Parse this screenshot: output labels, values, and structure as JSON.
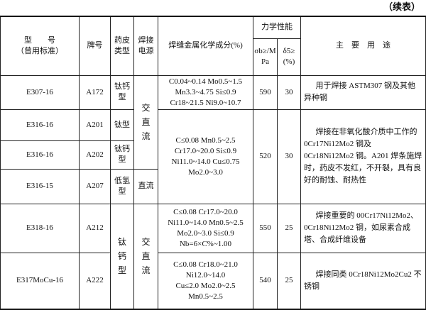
{
  "continued_label": "（续表）",
  "header": {
    "model": "型　　号",
    "model_sub": "（曾用标准）",
    "brand": "牌号",
    "coating": "药皮类型",
    "power": "焊接电源",
    "chem": "焊缝金属化学成分(%)",
    "mech": "力学性能",
    "sigma": "σb≥/MPa",
    "delta": "δ5≥(%)",
    "use": "主　要　用　途"
  },
  "rows": [
    {
      "model": "E307-16",
      "brand": "A172",
      "coating": "钛钙型",
      "power": "交直流",
      "chem": [
        "C0.04~0.14  Mo0.5~1.5",
        "Mn3.3~4.75  Si≤0.9",
        "Cr18~21.5  Ni9.0~10.7"
      ],
      "sigma": "590",
      "delta": "30",
      "use": "用于焊接 ASTM307 钢及其他异种钢"
    },
    {
      "model": "E316-16",
      "brand": "A201",
      "coating": "钛型",
      "chem": [
        "C≤0.08  Mn0.5~2.5",
        "Cr17.0~20.0  Si≤0.9",
        "Ni11.0~14.0  Cu≤0.75",
        "Mo2.0~3.0"
      ],
      "sigma": "520",
      "delta": "30",
      "use": "焊接在非氧化酸介质中工作的0Cr17Ni12Mo2 钢及 0Cr18Ni12Mo2 钢。A201 焊条施焊时，药皮不发红，不开裂，具有良好的耐蚀、耐热性"
    },
    {
      "model": "E316-16",
      "brand": "A202",
      "coating": "钛钙型"
    },
    {
      "model": "E316-15",
      "brand": "A207",
      "coating": "低氢型",
      "power": "直流"
    },
    {
      "model": "E318-16",
      "brand": "A212",
      "coating": "钛钙型",
      "power": "交直流",
      "chem": [
        "C≤0.08  Cr17.0~20.0",
        "Ni11.0~14.0  Mn0.5~2.5",
        "Mo2.0~3.0  Si≤0.9",
        "Nb=6×C%~1.00"
      ],
      "sigma": "550",
      "delta": "25",
      "use": "焊接重要的 00Cr17Ni12Mo2、0Cr18Ni12Mo2 钢，如尿素合成塔、合成纤维设备"
    },
    {
      "model": "E317MoCu-16",
      "brand": "A222",
      "chem": [
        "C≤0.08  Cr18.0~21.0",
        "Ni12.0~14.0",
        "Cu≤2.0  Mo2.0~2.5",
        "Mn0.5~2.5"
      ],
      "sigma": "540",
      "delta": "25",
      "use": "焊接同类 0Cr18Ni12Mo2Cu2 不锈钢"
    }
  ]
}
